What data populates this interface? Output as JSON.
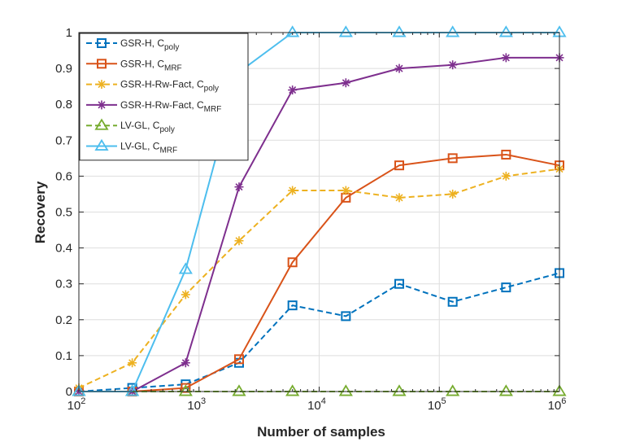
{
  "chart_data": {
    "type": "line",
    "xscale": "log",
    "xlabel": "Number of samples",
    "ylabel": "Recovery",
    "xlim": [
      100,
      1000000
    ],
    "ylim": [
      0,
      1
    ],
    "xticks": [
      {
        "value": 100,
        "base": "10",
        "exp": "2"
      },
      {
        "value": 1000,
        "base": "10",
        "exp": "3"
      },
      {
        "value": 10000,
        "base": "10",
        "exp": "4"
      },
      {
        "value": 100000,
        "base": "10",
        "exp": "5"
      },
      {
        "value": 1000000,
        "base": "10",
        "exp": "6"
      }
    ],
    "yticks": [
      {
        "value": 0,
        "label": "0"
      },
      {
        "value": 0.1,
        "label": "0.1"
      },
      {
        "value": 0.2,
        "label": "0.2"
      },
      {
        "value": 0.3,
        "label": "0.3"
      },
      {
        "value": 0.4,
        "label": "0.4"
      },
      {
        "value": 0.5,
        "label": "0.5"
      },
      {
        "value": 0.6,
        "label": "0.6"
      },
      {
        "value": 0.7,
        "label": "0.7"
      },
      {
        "value": 0.8,
        "label": "0.8"
      },
      {
        "value": 0.9,
        "label": "0.9"
      },
      {
        "value": 1,
        "label": "1"
      }
    ],
    "grid": true,
    "legend_position": "top-left",
    "x": [
      100,
      278,
      774,
      2154,
      5995,
      16681,
      46416,
      129155,
      359381,
      1000000
    ],
    "series": [
      {
        "name": "GSR-H, C",
        "sub": "poly",
        "color": "#0072BD",
        "dash": "dashed",
        "marker": "square",
        "values": [
          0,
          0.01,
          0.02,
          0.08,
          0.24,
          0.21,
          0.3,
          0.25,
          0.29,
          0.33
        ]
      },
      {
        "name": "GSR-H, C",
        "sub": "MRF",
        "color": "#D95319",
        "dash": "solid",
        "marker": "square",
        "values": [
          0,
          0,
          0.01,
          0.09,
          0.36,
          0.54,
          0.63,
          0.65,
          0.66,
          0.63
        ]
      },
      {
        "name": "GSR-H-Rw-Fact, C",
        "sub": "poly",
        "color": "#EDB120",
        "dash": "dashed",
        "marker": "asterisk",
        "values": [
          0.01,
          0.08,
          0.27,
          0.42,
          0.56,
          0.56,
          0.54,
          0.55,
          0.6,
          0.62
        ]
      },
      {
        "name": "GSR-H-Rw-Fact, C",
        "sub": "MRF",
        "color": "#7E2F8E",
        "dash": "solid",
        "marker": "asterisk",
        "values": [
          0,
          0,
          0.08,
          0.57,
          0.84,
          0.86,
          0.9,
          0.91,
          0.93,
          0.93
        ]
      },
      {
        "name": "LV-GL, C",
        "sub": "poly",
        "color": "#77AC30",
        "dash": "dashed",
        "marker": "triangle",
        "values": [
          0,
          0,
          0,
          0,
          0,
          0,
          0,
          0,
          0,
          0
        ]
      },
      {
        "name": "LV-GL, C",
        "sub": "MRF",
        "color": "#4DBEEE",
        "dash": "solid",
        "marker": "triangle",
        "values": [
          0,
          0,
          0.34,
          0.89,
          1,
          1,
          1,
          1,
          1,
          1
        ]
      }
    ]
  }
}
